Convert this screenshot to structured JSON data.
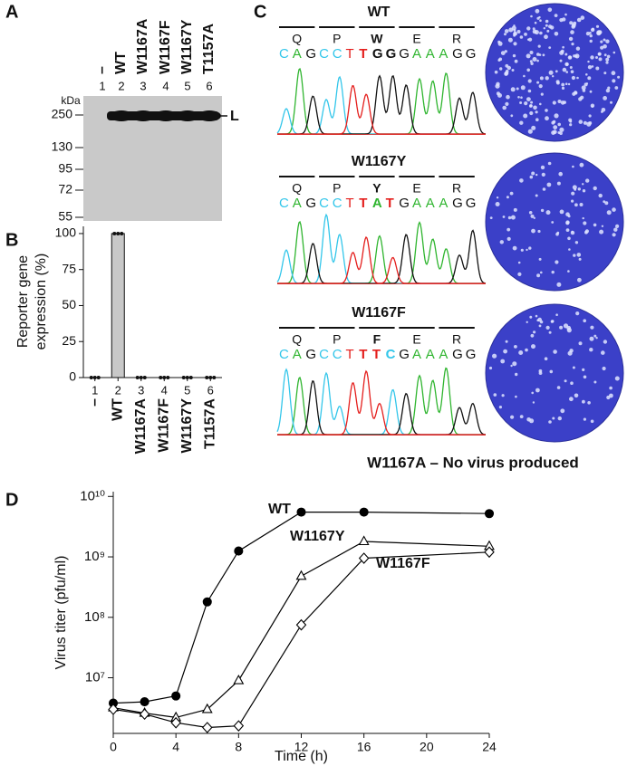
{
  "panel_labels": [
    "A",
    "B",
    "C",
    "D"
  ],
  "blot": {
    "lanes": [
      {
        "number": "1",
        "label": "–"
      },
      {
        "number": "2",
        "label": "WT"
      },
      {
        "number": "3",
        "label": "W1167A"
      },
      {
        "number": "4",
        "label": "W1167F"
      },
      {
        "number": "5",
        "label": "W1167Y"
      },
      {
        "number": "6",
        "label": "T1157A"
      }
    ],
    "kda_label": "kDa",
    "markers": [
      250,
      130,
      95,
      72,
      55
    ],
    "band_label": "L"
  },
  "sequencing": {
    "panels": [
      {
        "label": "WT",
        "amino_acids": [
          "Q",
          "P",
          "W",
          "E",
          "R"
        ],
        "bases": "CAGCCTTGGGAAAGG"
      },
      {
        "label": "W1167Y",
        "amino_acids": [
          "Q",
          "P",
          "Y",
          "E",
          "R"
        ],
        "bases": "CAGCCTTATGAAAGG"
      },
      {
        "label": "W1167F",
        "amino_acids": [
          "Q",
          "P",
          "F",
          "E",
          "R"
        ],
        "bases": "CAGCCTTTCGAAAGG"
      }
    ],
    "note": "W1167A – No virus produced"
  },
  "chart_data": [
    {
      "type": "bar",
      "ylabel": [
        "Reporter gene",
        "expression (%)"
      ],
      "categories": [
        "1",
        "2",
        "3",
        "4",
        "5",
        "6"
      ],
      "group_labels": [
        "–",
        "WT",
        "W1167A",
        "W1167F",
        "W1167Y",
        "T1157A"
      ],
      "values": [
        0,
        100,
        0,
        0,
        0,
        0
      ],
      "points": [
        [
          0,
          0,
          0
        ],
        [
          100,
          100,
          100
        ],
        [
          0,
          0,
          0
        ],
        [
          0,
          0,
          0
        ],
        [
          0,
          0,
          0
        ],
        [
          0,
          0,
          0
        ]
      ],
      "color": "#c8c8c8",
      "ylim": [
        0,
        105
      ],
      "yticks": [
        0,
        25,
        50,
        75,
        100
      ]
    },
    {
      "type": "line",
      "xlabel": "Time (h)",
      "ylabel": "Virus titer (pfu/ml)",
      "log_scale_y": true,
      "xlim": [
        0,
        24
      ],
      "xticks": [
        0,
        4,
        8,
        12,
        16,
        20,
        24
      ],
      "ylim": [
        1200000,
        12000000000
      ],
      "yticks": [
        {
          "value": 10000000,
          "label": "10⁷"
        },
        {
          "value": 100000000,
          "label": "10⁸"
        },
        {
          "value": 1000000000,
          "label": "10⁹"
        },
        {
          "value": 10000000000,
          "label": "10¹⁰"
        }
      ],
      "series": [
        {
          "name": "WT",
          "color": "#000000",
          "marker": "filled-circle",
          "x": [
            0,
            2,
            4,
            6,
            8,
            12,
            16,
            24
          ],
          "values": [
            3800000,
            4000000,
            5000000,
            180000000,
            1250000000,
            5500000000,
            5500000000,
            5200000000
          ]
        },
        {
          "name": "W1167Y",
          "color": "#000000",
          "marker": "open-triangle",
          "x": [
            0,
            2,
            4,
            6,
            8,
            12,
            16,
            24
          ],
          "values": [
            3200000,
            2600000,
            2200000,
            3000000,
            9000000,
            480000000,
            1800000000,
            1500000000
          ]
        },
        {
          "name": "W1167F",
          "color": "#000000",
          "marker": "open-diamond",
          "x": [
            0,
            2,
            4,
            6,
            8,
            12,
            16,
            24
          ],
          "values": [
            3000000,
            2500000,
            1800000,
            1500000,
            1600000,
            75000000,
            950000000,
            1200000000
          ]
        }
      ]
    }
  ]
}
